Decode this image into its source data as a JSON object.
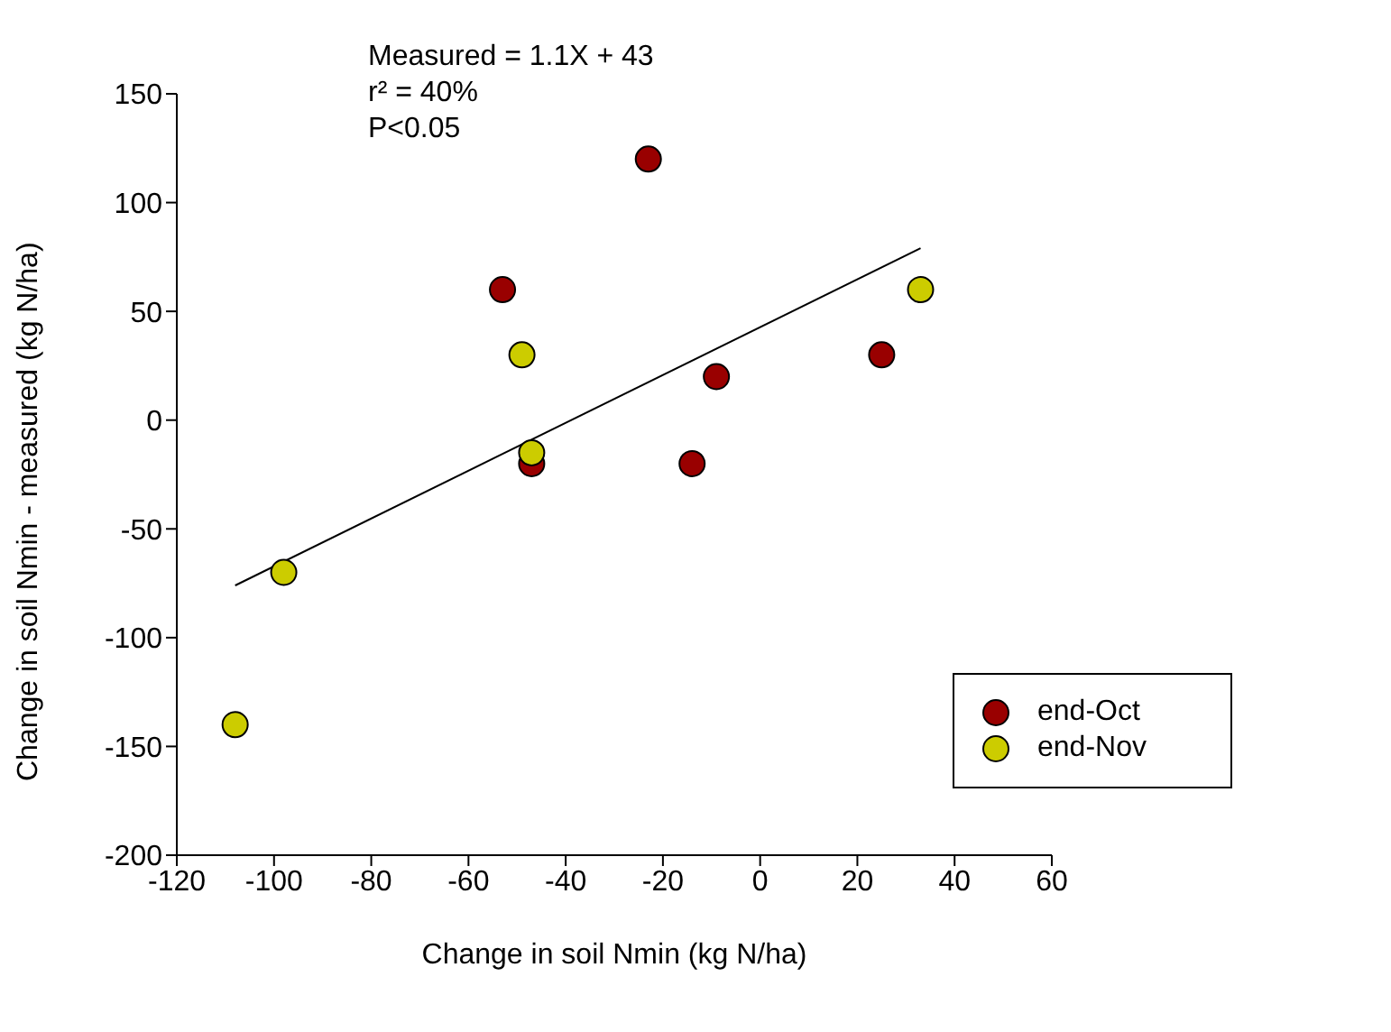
{
  "chart_data": {
    "type": "scatter",
    "xlabel": "Change in soil Nmin (kg N/ha)",
    "ylabel": "Change in soil Nmin - measured (kg N/ha)",
    "annotations": [
      "Measured = 1.1X + 43",
      "r² = 40%",
      "P<0.05"
    ],
    "series": [
      {
        "name": "end-Oct",
        "color": "#990000",
        "x": [
          -53,
          -23,
          -47,
          -14,
          -9,
          25
        ],
        "values": [
          60,
          120,
          -20,
          -20,
          20,
          30
        ]
      },
      {
        "name": "end-Nov",
        "color": "#cccc00",
        "x": [
          -49,
          -47,
          -98,
          -108,
          33
        ],
        "values": [
          30,
          -15,
          -70,
          -140,
          60
        ]
      },
      {
        "type": "line",
        "color": "#000000",
        "x": [
          -108,
          33
        ],
        "values": [
          -76,
          79
        ],
        "marker": "none"
      }
    ],
    "xlim": [
      -120,
      60
    ],
    "xticks": [
      -120,
      -100,
      -80,
      -60,
      -40,
      -20,
      0,
      20,
      40,
      60
    ],
    "ylim": [
      -200,
      150
    ],
    "yticks": [
      -200,
      -150,
      -100,
      -50,
      0,
      50,
      100,
      150
    ],
    "legend": "bottom right",
    "marker": "circle"
  }
}
